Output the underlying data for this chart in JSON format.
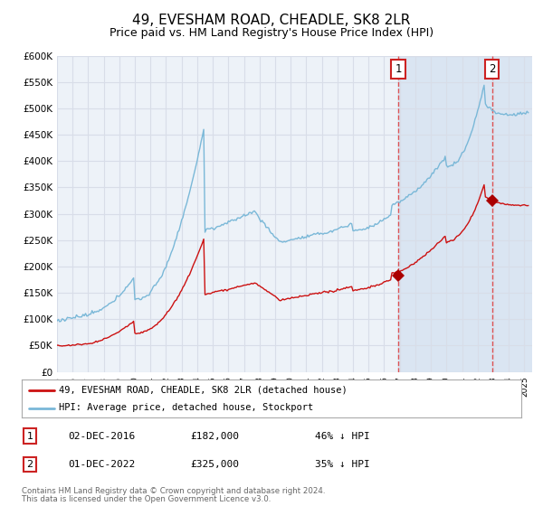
{
  "title": "49, EVESHAM ROAD, CHEADLE, SK8 2LR",
  "subtitle": "Price paid vs. HM Land Registry's House Price Index (HPI)",
  "ylim": [
    0,
    600000
  ],
  "yticks": [
    0,
    50000,
    100000,
    150000,
    200000,
    250000,
    300000,
    350000,
    400000,
    450000,
    500000,
    550000,
    600000
  ],
  "xlim_start": 1995.0,
  "xlim_end": 2025.5,
  "hpi_color": "#7ab8d8",
  "price_color": "#cc1111",
  "marker_color": "#aa0000",
  "vline_color": "#dd4444",
  "bg_color": "#edf2f8",
  "grid_color": "#d8dde8",
  "shade_color": "#ccdcee",
  "marker1_x": 2016.92,
  "marker1_y": 182000,
  "marker2_x": 2022.92,
  "marker2_y": 325000,
  "legend_entry1": "49, EVESHAM ROAD, CHEADLE, SK8 2LR (detached house)",
  "legend_entry2": "HPI: Average price, detached house, Stockport",
  "table_row1": [
    "1",
    "02-DEC-2016",
    "£182,000",
    "46% ↓ HPI"
  ],
  "table_row2": [
    "2",
    "01-DEC-2022",
    "£325,000",
    "35% ↓ HPI"
  ],
  "footer1": "Contains HM Land Registry data © Crown copyright and database right 2024.",
  "footer2": "This data is licensed under the Open Government Licence v3.0.",
  "title_fontsize": 11,
  "subtitle_fontsize": 9
}
